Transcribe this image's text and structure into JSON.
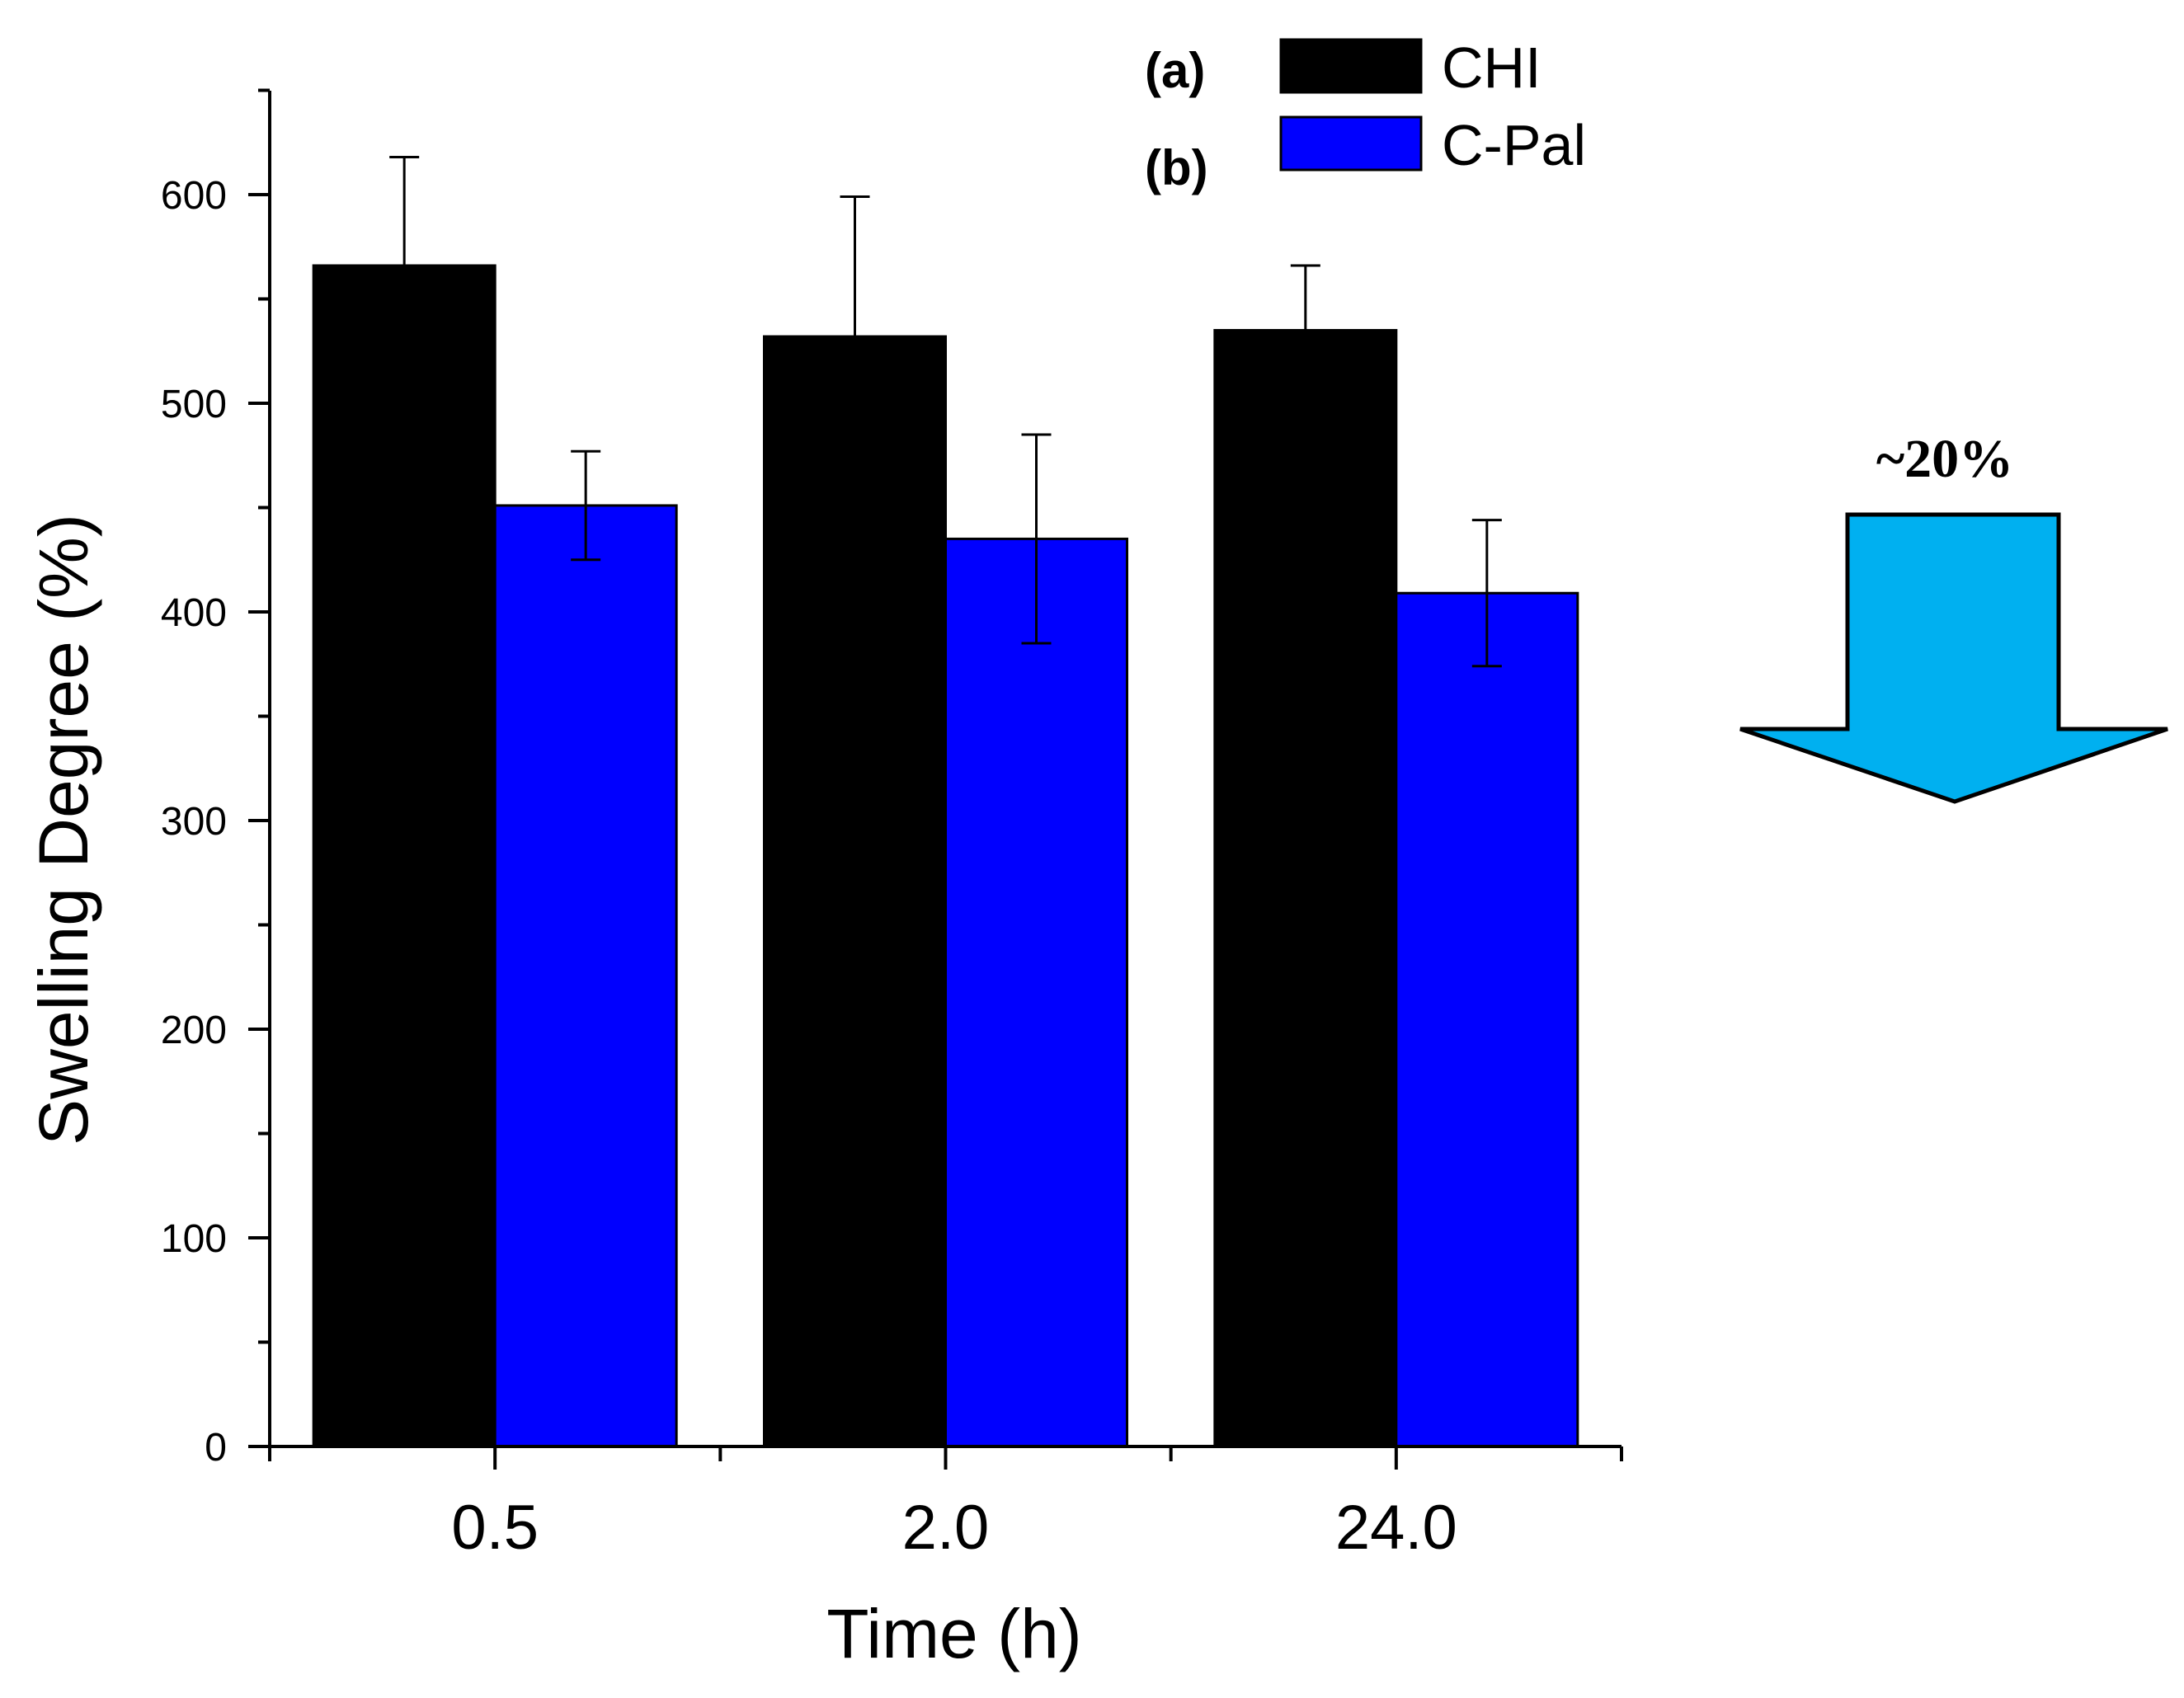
{
  "chart_data": {
    "type": "bar",
    "categories": [
      "0.5",
      "2.0",
      "24.0"
    ],
    "series": [
      {
        "name": "CHI",
        "marker": "(a)",
        "color": "#000000",
        "values": [
          566,
          532,
          535
        ],
        "errors": [
          52,
          67,
          31
        ]
      },
      {
        "name": "C-Pal",
        "marker": "(b)",
        "color": "#0000ff",
        "values": [
          451,
          435,
          409
        ],
        "errors": [
          26,
          50,
          35
        ]
      }
    ],
    "xlabel": "Time (h)",
    "ylabel": "Swelling Degree (%)",
    "ylim": [
      0,
      650
    ],
    "yticks": [
      0,
      100,
      200,
      300,
      400,
      500,
      600
    ],
    "ytick_labels": [
      "0",
      "100",
      "200",
      "300",
      "400",
      "500",
      "600"
    ],
    "legend_position": "top-right",
    "annotation": {
      "text": "~20%",
      "arrow": "down",
      "color": "#00b0f0"
    }
  }
}
